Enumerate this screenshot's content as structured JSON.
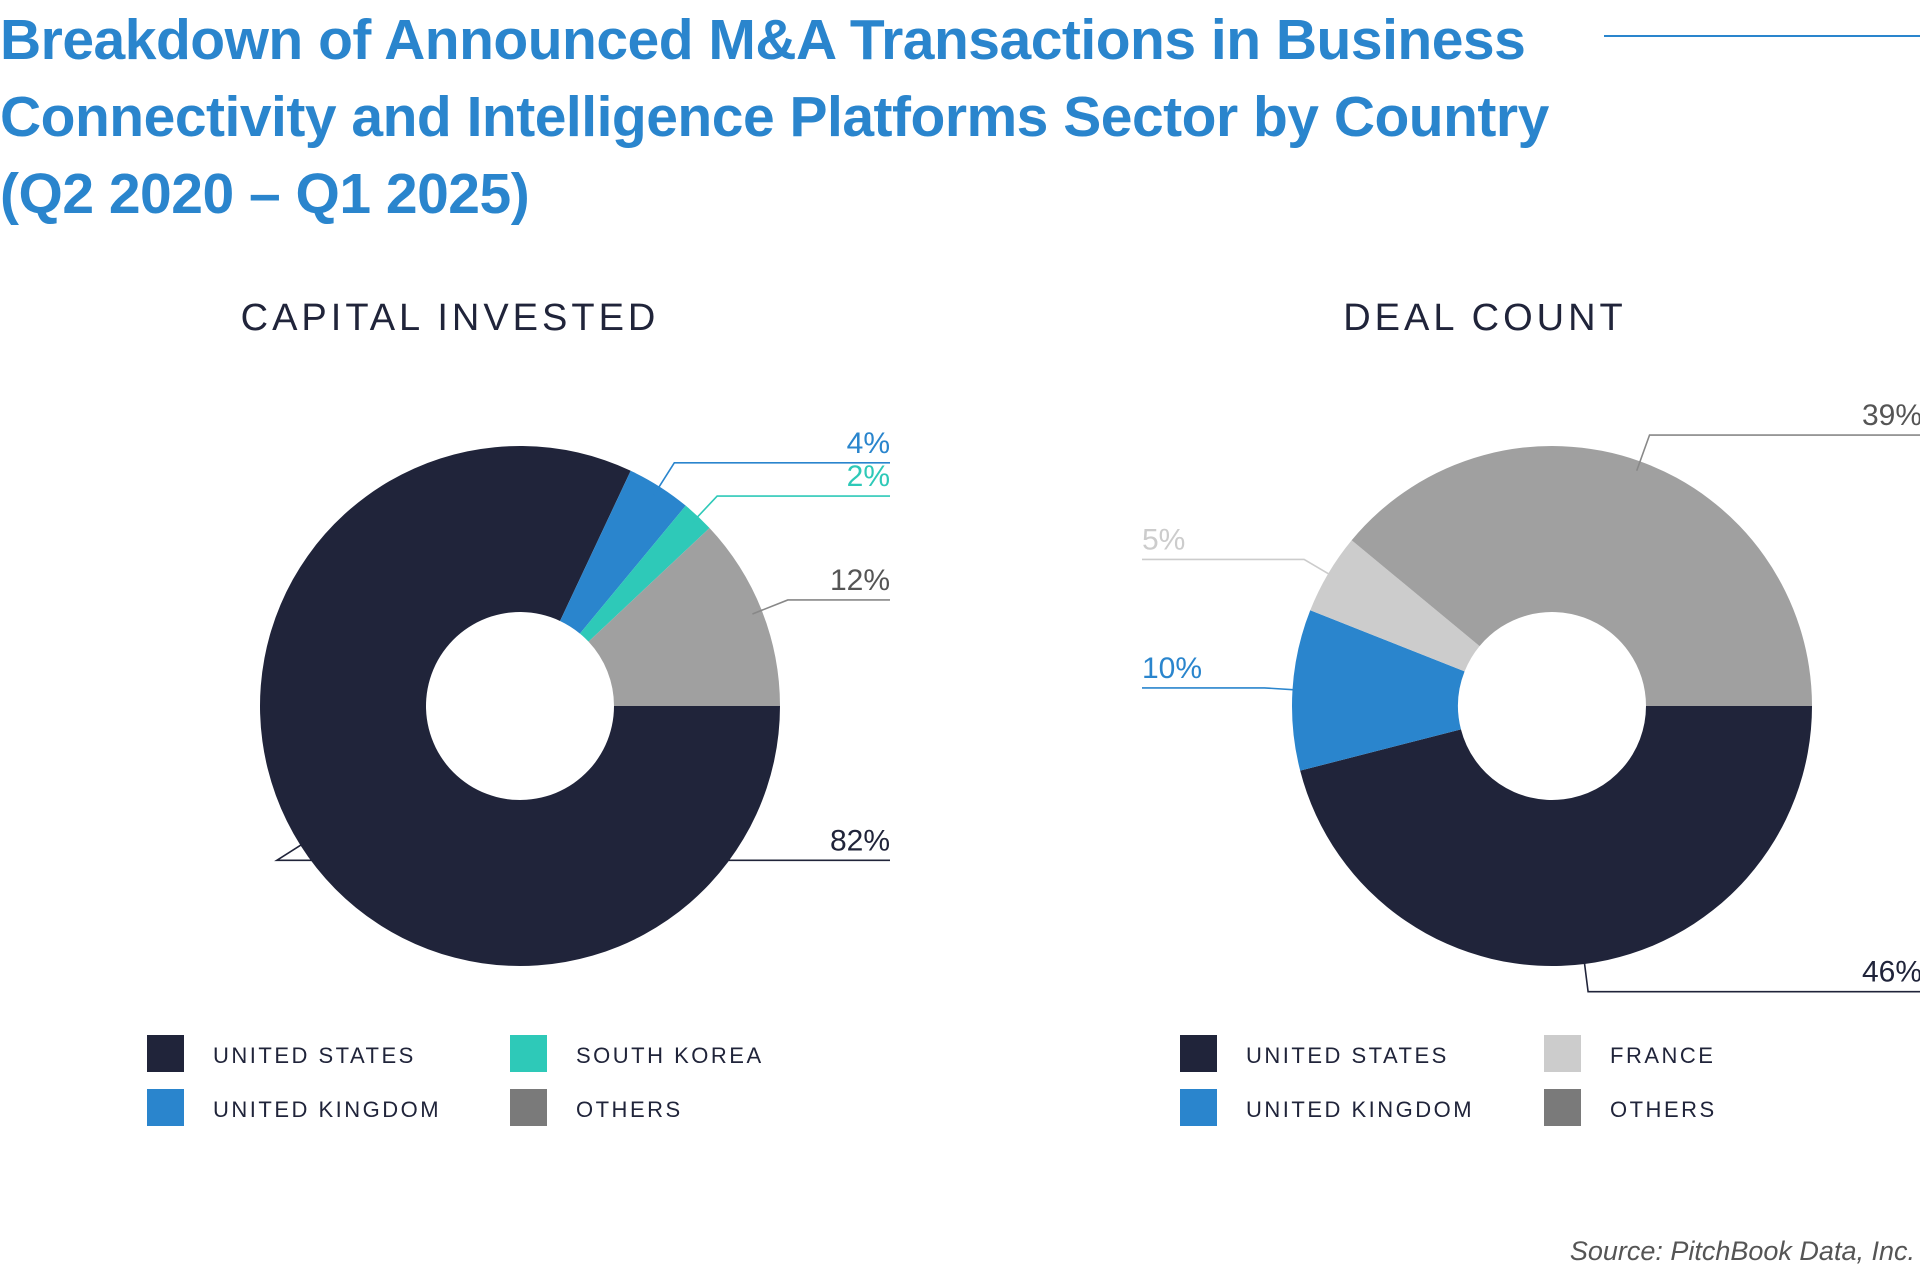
{
  "title": "Breakdown of Announced M&A Transactions in Business Connectivity and Intelligence Platforms Sector by Country (Q2 2020 – Q1 2025)",
  "source": "Source: PitchBook Data, Inc.",
  "colors": {
    "title": "#2a85cd",
    "united_states": "#20243a",
    "united_kingdom": "#2a85cd",
    "south_korea": "#2ec9b8",
    "france": "#cccccc",
    "others": "#a0a0a0",
    "others_legend": "#7a7a7a"
  },
  "chart_data": [
    {
      "type": "pie",
      "style": "donut",
      "title": "CAPITAL INVESTED",
      "legend_position": "bottom",
      "slices": [
        {
          "name": "UNITED STATES",
          "value": 82,
          "label": "82%",
          "color": "#20243a",
          "legend_color": "#20243a"
        },
        {
          "name": "UNITED KINGDOM",
          "value": 4,
          "label": "4%",
          "color": "#2a85cd",
          "legend_color": "#2a85cd"
        },
        {
          "name": "SOUTH KOREA",
          "value": 2,
          "label": "2%",
          "color": "#2ec9b8",
          "legend_color": "#2ec9b8"
        },
        {
          "name": "OTHERS",
          "value": 12,
          "label": "12%",
          "color": "#a0a0a0",
          "legend_color": "#7a7a7a"
        }
      ],
      "legend_order": [
        "UNITED STATES",
        "SOUTH KOREA",
        "UNITED KINGDOM",
        "OTHERS"
      ]
    },
    {
      "type": "pie",
      "style": "donut",
      "title": "DEAL COUNT",
      "legend_position": "bottom",
      "slices": [
        {
          "name": "UNITED STATES",
          "value": 46,
          "label": "46%",
          "color": "#20243a",
          "legend_color": "#20243a"
        },
        {
          "name": "UNITED KINGDOM",
          "value": 10,
          "label": "10%",
          "color": "#2a85cd",
          "legend_color": "#2a85cd"
        },
        {
          "name": "FRANCE",
          "value": 5,
          "label": "5%",
          "color": "#cccccc",
          "legend_color": "#cccccc"
        },
        {
          "name": "OTHERS",
          "value": 39,
          "label": "39%",
          "color": "#a0a0a0",
          "legend_color": "#7a7a7a"
        }
      ],
      "legend_order": [
        "UNITED STATES",
        "FRANCE",
        "UNITED KINGDOM",
        "OTHERS"
      ]
    }
  ]
}
